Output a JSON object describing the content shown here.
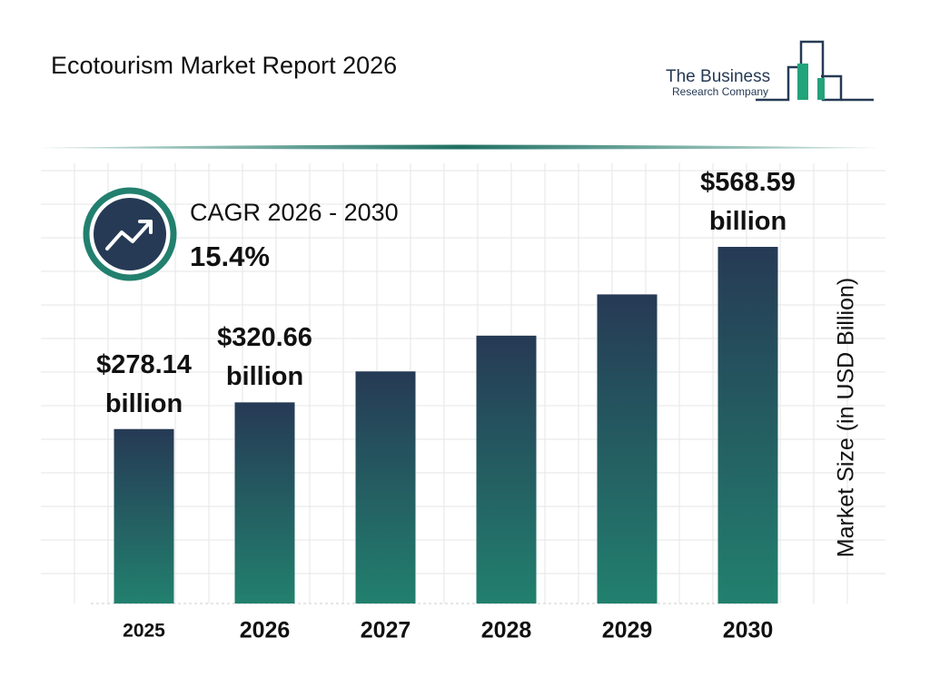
{
  "header": {
    "title": "Ecotourism Market Report 2026",
    "logo_line1": "The Business",
    "logo_line2": "Research Company"
  },
  "cagr": {
    "label": "CAGR 2026 - 2030",
    "value": "15.4%"
  },
  "chart_data": {
    "type": "bar",
    "categories": [
      "2025",
      "2026",
      "2027",
      "2028",
      "2029",
      "2030"
    ],
    "values": [
      278.14,
      320.66,
      370.04,
      427.03,
      492.79,
      568.59
    ],
    "value_labels": [
      "$278.14 billion",
      "$320.66 billion",
      null,
      null,
      null,
      "$568.59 billion"
    ],
    "y_axis_label": "Market Size (in USD Billion)",
    "color_top": "#263a55",
    "color_bottom": "#22806e"
  }
}
